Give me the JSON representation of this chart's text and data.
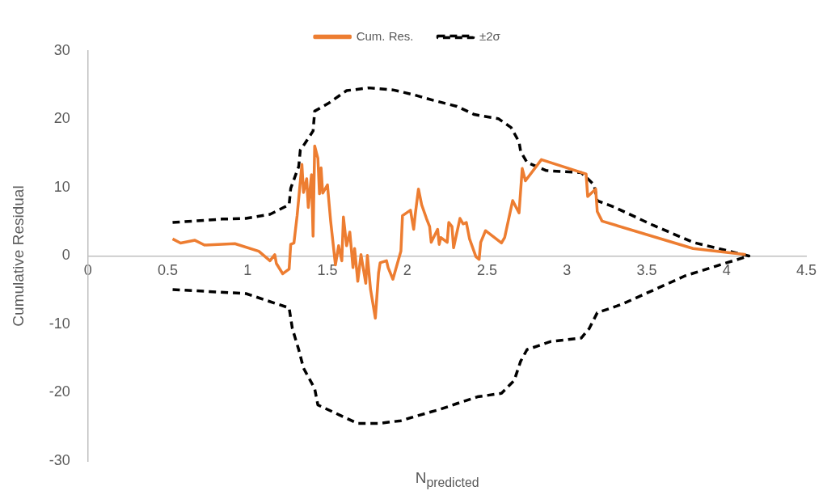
{
  "chart_data": {
    "type": "line",
    "xlabel": "N$_{predicted}$",
    "ylabel": "Cumulative Residual",
    "xlim": [
      0,
      4.5
    ],
    "ylim": [
      -30,
      30
    ],
    "xticks": [
      0,
      0.5,
      1,
      1.5,
      2,
      2.5,
      3,
      3.5,
      4,
      4.5
    ],
    "yticks": [
      -30,
      -20,
      -10,
      0,
      10,
      20,
      30
    ],
    "grid": false,
    "legend": "top",
    "marker": "none",
    "series": [
      {
        "name": "Cum. Res.",
        "color": "#ed7d31",
        "line_style": "solid",
        "x": [
          0.53,
          0.58,
          0.67,
          0.73,
          0.92,
          1.07,
          1.14,
          1.17,
          1.18,
          1.22,
          1.26,
          1.27,
          1.29,
          1.31,
          1.34,
          1.35,
          1.37,
          1.38,
          1.4,
          1.41,
          1.42,
          1.44,
          1.45,
          1.46,
          1.47,
          1.5,
          1.52,
          1.55,
          1.57,
          1.59,
          1.6,
          1.62,
          1.64,
          1.66,
          1.67,
          1.69,
          1.71,
          1.74,
          1.75,
          1.77,
          1.8,
          1.82,
          1.83,
          1.87,
          1.88,
          1.91,
          1.96,
          1.97,
          2.02,
          2.04,
          2.05,
          2.07,
          2.09,
          2.12,
          2.14,
          2.15,
          2.19,
          2.2,
          2.21,
          2.25,
          2.26,
          2.28,
          2.29,
          2.33,
          2.35,
          2.37,
          2.39,
          2.43,
          2.45,
          2.46,
          2.49,
          2.59,
          2.61,
          2.66,
          2.7,
          2.72,
          2.74,
          2.84,
          3.12,
          3.13,
          3.18,
          3.19,
          3.22,
          3.79,
          4.12
        ],
        "values": [
          2.5,
          1.9,
          2.3,
          1.6,
          1.8,
          0.7,
          -0.7,
          0.2,
          -1.1,
          -2.6,
          -1.9,
          1.7,
          1.9,
          5.9,
          13.4,
          9.3,
          11.3,
          7.1,
          11.9,
          2.9,
          16.1,
          14.3,
          9.1,
          12.9,
          9.2,
          10.4,
          5.1,
          -1.3,
          1.5,
          -0.7,
          5.7,
          1.5,
          3.5,
          -1.7,
          1.1,
          -3.7,
          0.2,
          -4.0,
          0.1,
          -4.9,
          -9.1,
          -2.5,
          -1.0,
          -0.7,
          -1.7,
          -3.4,
          0.7,
          5.9,
          6.7,
          3.9,
          6.1,
          9.8,
          7.5,
          5.5,
          4.3,
          2.0,
          3.9,
          1.7,
          2.7,
          2.0,
          4.9,
          4.3,
          1.2,
          5.5,
          4.7,
          4.9,
          2.5,
          -0.1,
          -0.5,
          2.0,
          3.7,
          1.9,
          2.7,
          8.1,
          6.3,
          12.8,
          11.0,
          14.1,
          12.0,
          8.7,
          9.8,
          6.5,
          5.1,
          1.1,
          0.2
        ]
      },
      {
        "name": "±2σ",
        "color": "#000000",
        "line_style": "dashed",
        "x": [
          0.53,
          0.84,
          0.99,
          1.14,
          1.26,
          1.27,
          1.32,
          1.33,
          1.36,
          1.41,
          1.42,
          1.51,
          1.62,
          1.76,
          1.91,
          2.04,
          2.16,
          2.31,
          2.42,
          2.57,
          2.65,
          2.7,
          2.71,
          2.75,
          2.87,
          3.09,
          3.14,
          3.17,
          3.19,
          3.3,
          3.54,
          3.79,
          4.0,
          4.14,
          4.0,
          3.74,
          3.57,
          3.34,
          3.19,
          3.14,
          3.09,
          2.9,
          2.75,
          2.71,
          2.67,
          2.59,
          2.44,
          2.31,
          2.21,
          2.06,
          1.96,
          1.82,
          1.69,
          1.57,
          1.44,
          1.42,
          1.35,
          1.32,
          1.28,
          1.26,
          0.99,
          0.53
        ],
        "values": [
          4.9,
          5.4,
          5.5,
          6.1,
          7.5,
          9.9,
          13.1,
          15.5,
          16.5,
          18.3,
          21.2,
          22.4,
          24.2,
          24.6,
          24.3,
          23.6,
          22.8,
          21.9,
          20.7,
          20.1,
          18.8,
          16.7,
          15.3,
          13.7,
          12.5,
          12.2,
          11.1,
          10.4,
          8.1,
          7.1,
          4.5,
          2.0,
          0.8,
          0,
          -1.0,
          -2.9,
          -4.7,
          -7.1,
          -8.3,
          -10.6,
          -12.0,
          -12.5,
          -13.7,
          -15.4,
          -18.2,
          -20.1,
          -20.6,
          -21.6,
          -22.4,
          -23.4,
          -24.1,
          -24.5,
          -24.5,
          -23.2,
          -21.8,
          -19.4,
          -16.4,
          -13.7,
          -10.6,
          -7.6,
          -5.5,
          -4.9
        ]
      }
    ]
  }
}
